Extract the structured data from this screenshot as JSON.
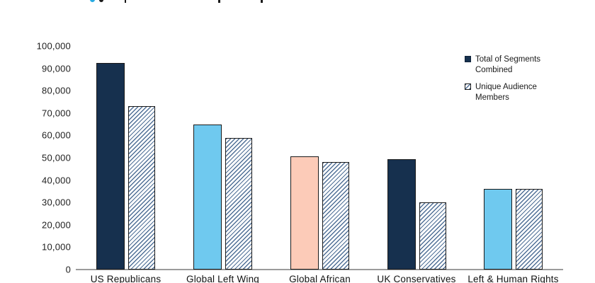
{
  "page": {
    "background": "#FFFFFF"
  },
  "caption_remnant": {
    "description": "bottom edge of a cut-off caption line above the chart",
    "bullet_color": "#29ABE2",
    "mark_color": "#1A1A1A"
  },
  "legend": {
    "position": "top-right",
    "items": [
      {
        "label": "Total of Segments Combined",
        "swatch": "solid",
        "color": "#16304E"
      },
      {
        "label": "Unique Audience Members",
        "swatch": "hatched",
        "color": "#4F6F96"
      }
    ]
  },
  "chart_data": {
    "type": "bar",
    "title": "",
    "xlabel": "",
    "ylabel": "",
    "categories": [
      "US Republicans",
      "Global Left Wing",
      "Global African",
      "UK Conservatives",
      "Left & Human Rights"
    ],
    "series": [
      {
        "name": "Total of Segments Combined",
        "style": "solid",
        "values": [
          92500,
          65000,
          50500,
          49500,
          36000
        ],
        "colors": [
          "#16304E",
          "#6FC9EF",
          "#FCCBB8",
          "#16304E",
          "#6FC9EF"
        ]
      },
      {
        "name": "Unique Audience Members",
        "style": "hatched",
        "values": [
          73000,
          59000,
          48000,
          30000,
          36000
        ],
        "hatch_color": "#4F6F96"
      }
    ],
    "ylim": [
      0,
      100000
    ],
    "ytick_step": 10000,
    "ytick_labels": [
      "0",
      "10,000",
      "20,000",
      "30,000",
      "40,000",
      "50,000",
      "60,000",
      "70,000",
      "80,000",
      "90,000",
      "100,000"
    ],
    "grid": false,
    "axis_line_color": "#9B9B9B",
    "bar_border_color": "#1A1A1A",
    "legend_position": "top-right"
  }
}
